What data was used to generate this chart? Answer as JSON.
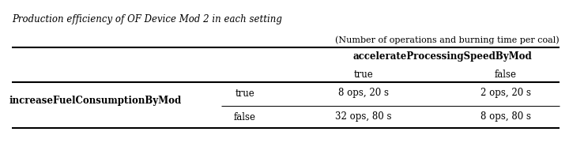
{
  "title": "Production efficiency of OF Device Mod 2 in each setting",
  "subtitle": "(Number of operations and burning time per coal)",
  "col_header_label": "accelerateProcessingSpeedByMod",
  "col_subheaders": [
    "true",
    "false"
  ],
  "row_header_label": "increaseFuelConsumptionByMod",
  "row_subheaders": [
    "true",
    "false"
  ],
  "cells": [
    [
      "8 ops, 20 s",
      "2 ops, 20 s"
    ],
    [
      "32 ops, 80 s",
      "8 ops, 80 s"
    ]
  ],
  "background_color": "#ffffff",
  "text_color": "#000000",
  "line_color": "#000000",
  "title_fontsize": 8.5,
  "header_fontsize": 8.5,
  "cell_fontsize": 8.5,
  "fig_width": 7.2,
  "fig_height": 2.0,
  "dpi": 100
}
